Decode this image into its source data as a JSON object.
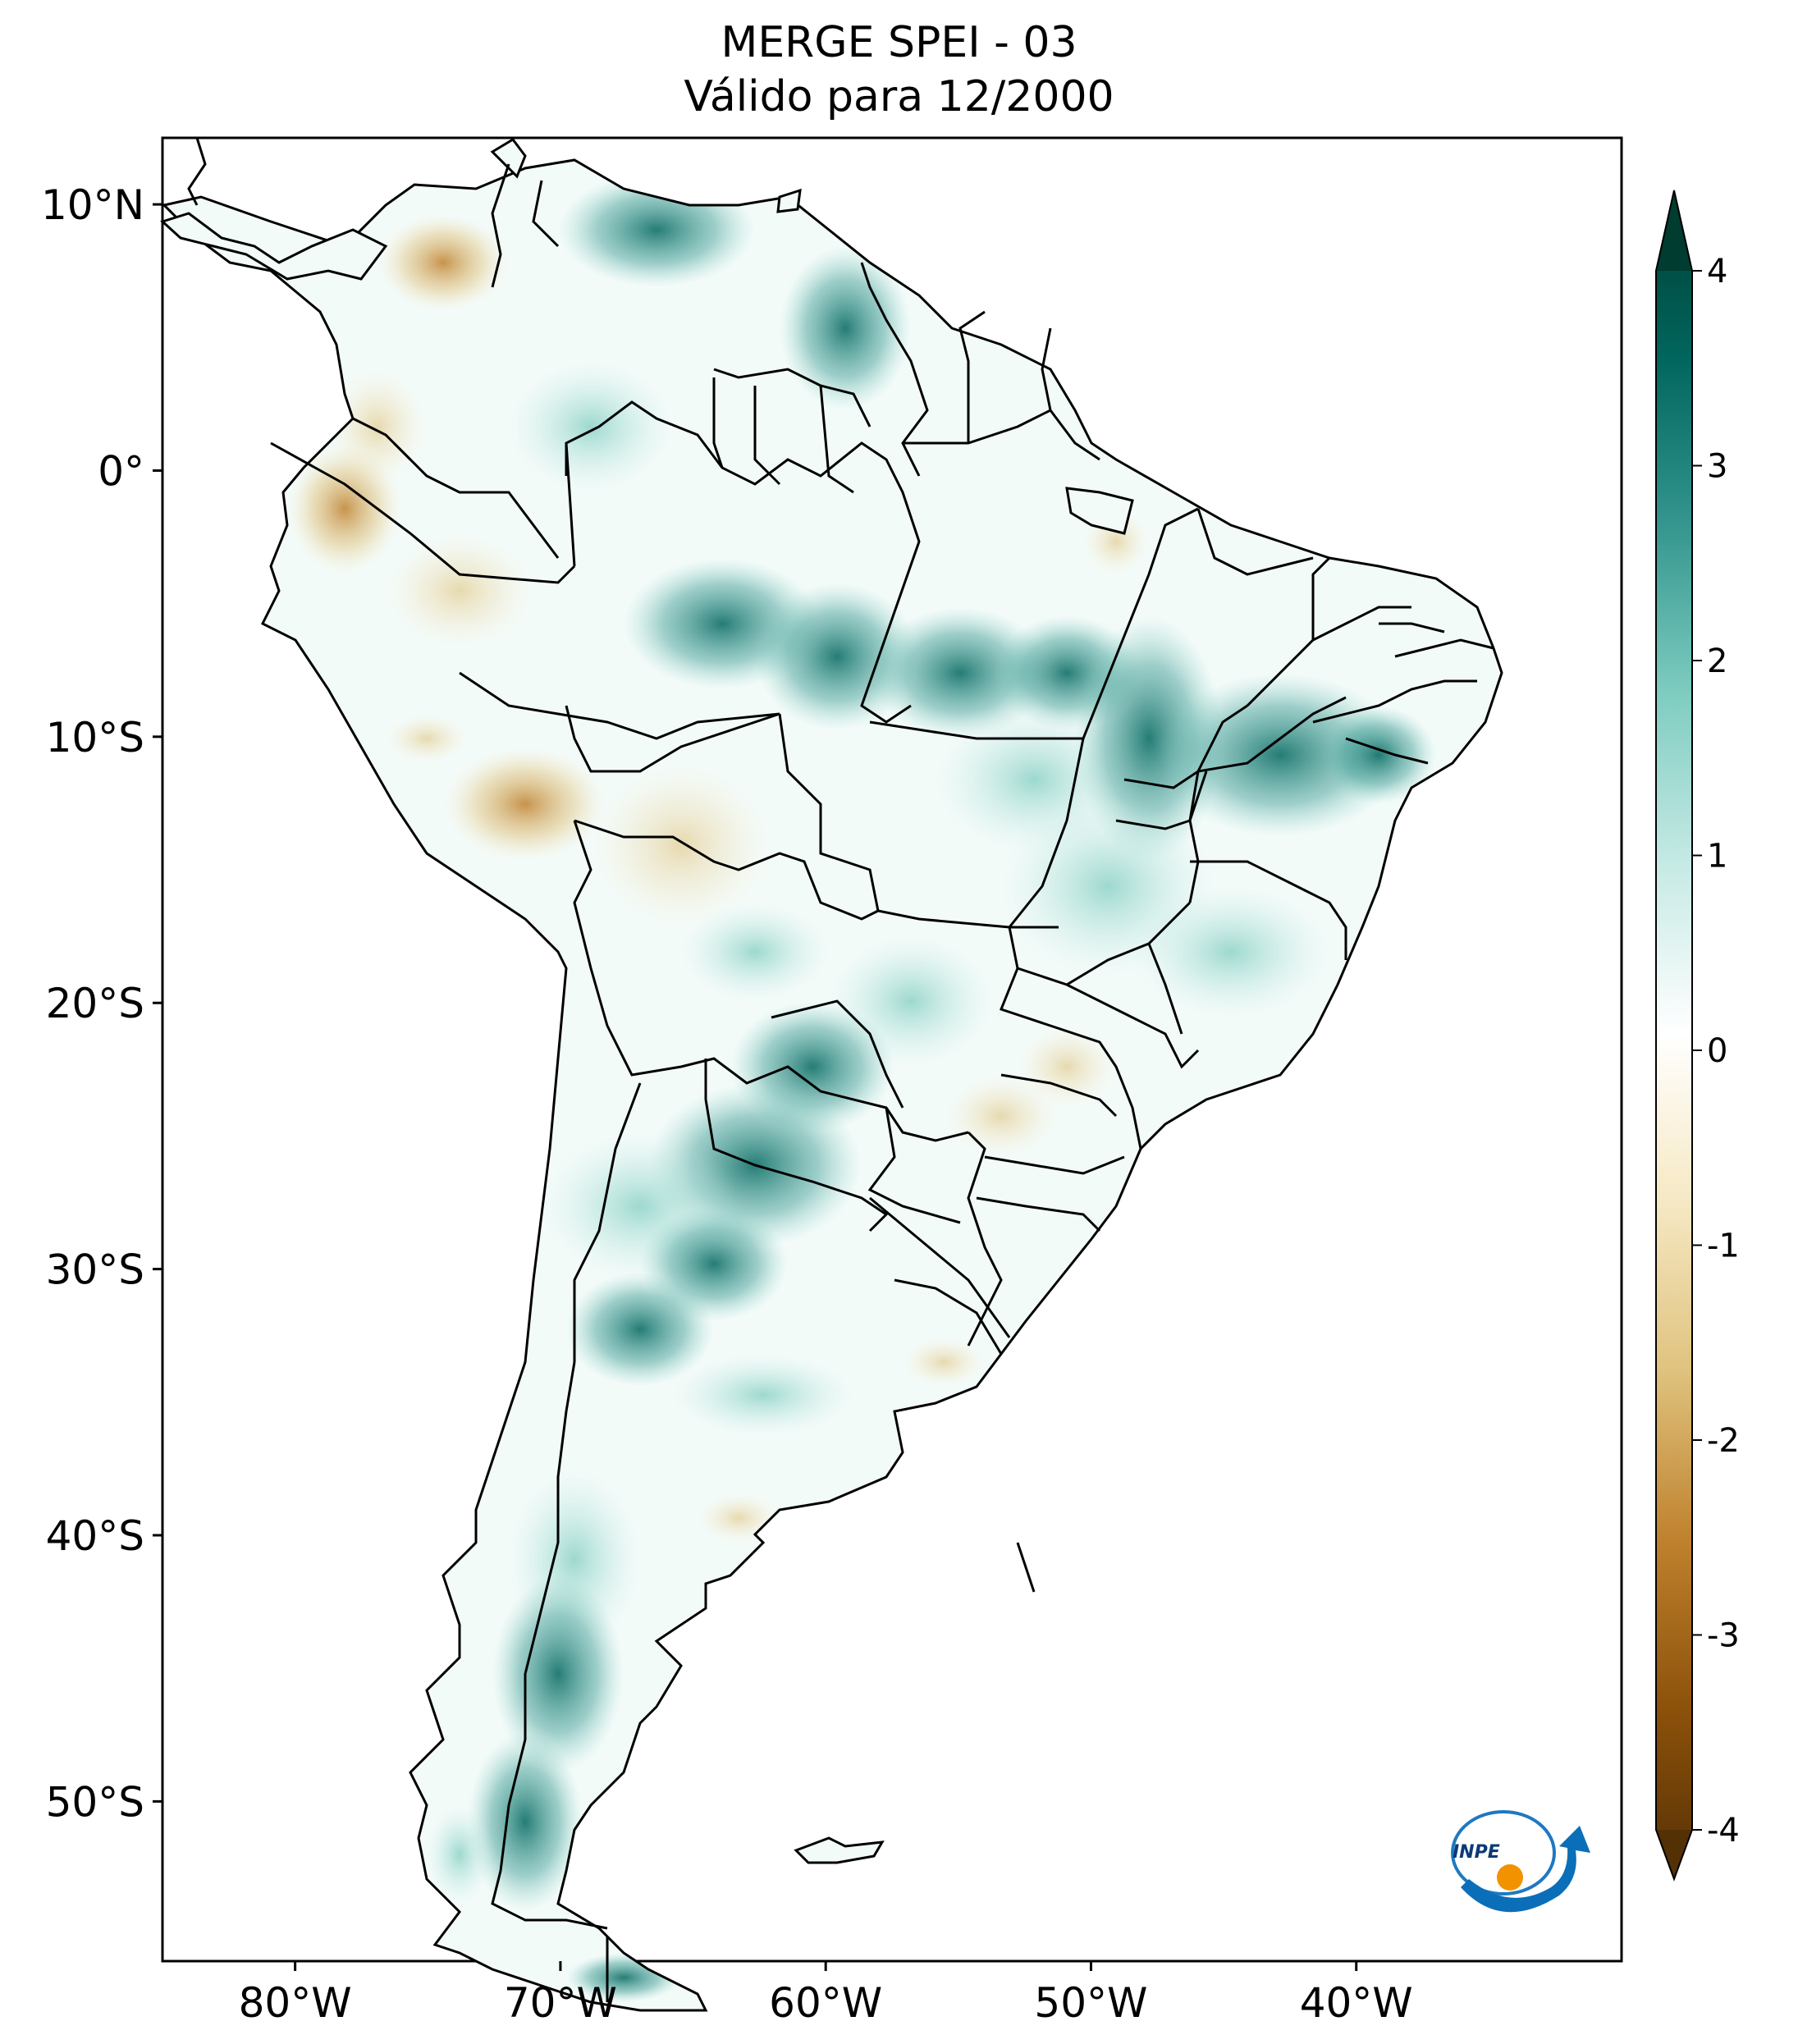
{
  "title": {
    "line1": "MERGE   SPEI - 03",
    "line2": "Válido para 12/2000"
  },
  "map": {
    "region": "South America",
    "lat_range": [
      -56,
      12.5
    ],
    "lon_range": [
      -85,
      -30
    ],
    "lat_ticks": [
      {
        "value": 10,
        "label": "10°N"
      },
      {
        "value": 0,
        "label": "0°"
      },
      {
        "value": -10,
        "label": "10°S"
      },
      {
        "value": -20,
        "label": "20°S"
      },
      {
        "value": -30,
        "label": "30°S"
      },
      {
        "value": -40,
        "label": "40°S"
      },
      {
        "value": -50,
        "label": "50°S"
      }
    ],
    "lon_ticks": [
      {
        "value": -80,
        "label": "80°W"
      },
      {
        "value": -70,
        "label": "70°W"
      },
      {
        "value": -60,
        "label": "60°W"
      },
      {
        "value": -50,
        "label": "50°W"
      },
      {
        "value": -40,
        "label": "40°W"
      }
    ]
  },
  "colorbar": {
    "min": -4,
    "max": 4,
    "ticks": [
      {
        "value": 4,
        "label": "4"
      },
      {
        "value": 3,
        "label": "3"
      },
      {
        "value": 2,
        "label": "2"
      },
      {
        "value": 1,
        "label": "1"
      },
      {
        "value": 0,
        "label": "0"
      },
      {
        "value": -1,
        "label": "-1"
      },
      {
        "value": -2,
        "label": "-2"
      },
      {
        "value": -3,
        "label": "-3"
      },
      {
        "value": -4,
        "label": "-4"
      }
    ],
    "colors": [
      "#543005",
      "#8c510a",
      "#bf812d",
      "#dfc27d",
      "#f6e8c3",
      "#ffffff",
      "#c7eae5",
      "#80cdc1",
      "#35978f",
      "#01665e",
      "#003c30"
    ]
  },
  "logo": {
    "text": "INPE"
  },
  "colors": {
    "wet": "#01665e",
    "dry": "#8c510a",
    "frame": "#000000"
  }
}
